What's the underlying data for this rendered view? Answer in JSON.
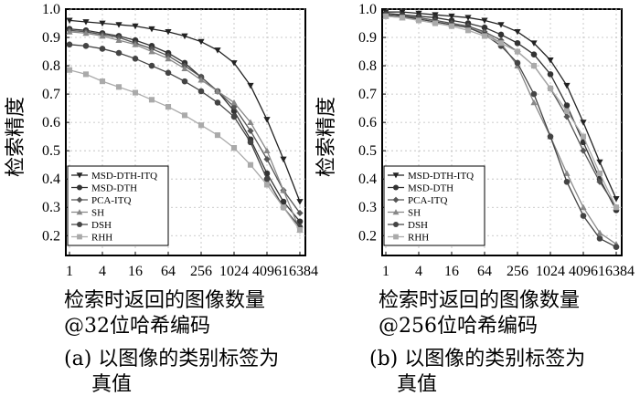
{
  "chart_data": [
    {
      "type": "line",
      "panel": "a",
      "title": "",
      "xlabel_line1": "检索时返回的图像数量",
      "xlabel_line2": "@32位哈希编码",
      "ylabel": "检索精度",
      "caption_line1": "(a) 以图像的类别标签为",
      "caption_line2": "真值",
      "x_scale": "log2",
      "x": [
        1,
        2,
        4,
        8,
        16,
        32,
        64,
        128,
        256,
        512,
        1024,
        2048,
        4096,
        8192,
        16384
      ],
      "x_tick_labels": [
        "1",
        "4",
        "16",
        "64",
        "256",
        "1024",
        "4096",
        "16384"
      ],
      "x_tick_values": [
        1,
        4,
        16,
        64,
        256,
        1024,
        4096,
        16384
      ],
      "y_tick_labels": [
        "0.2",
        "0.3",
        "0.4",
        "0.5",
        "0.6",
        "0.7",
        "0.8",
        "0.9",
        "1.0"
      ],
      "y_tick_values": [
        0.2,
        0.3,
        0.4,
        0.5,
        0.6,
        0.7,
        0.8,
        0.9,
        1.0
      ],
      "ylim": [
        0.13,
        1.0
      ],
      "grid": true,
      "legend_position": "bottom-left",
      "series": [
        {
          "name": "MSD-DTH-ITQ",
          "marker": "triangle-down",
          "color": "#222222",
          "values": [
            0.96,
            0.955,
            0.95,
            0.945,
            0.94,
            0.93,
            0.92,
            0.905,
            0.885,
            0.855,
            0.81,
            0.73,
            0.61,
            0.47,
            0.32
          ]
        },
        {
          "name": "MSD-DTH",
          "marker": "circle",
          "color": "#333333",
          "values": [
            0.93,
            0.925,
            0.915,
            0.905,
            0.89,
            0.87,
            0.845,
            0.81,
            0.76,
            0.71,
            0.64,
            0.54,
            0.42,
            0.32,
            0.25
          ]
        },
        {
          "name": "PCA-ITQ",
          "marker": "diamond",
          "color": "#555555",
          "values": [
            0.925,
            0.92,
            0.91,
            0.9,
            0.88,
            0.86,
            0.835,
            0.8,
            0.76,
            0.71,
            0.655,
            0.57,
            0.47,
            0.36,
            0.28
          ]
        },
        {
          "name": "SH",
          "marker": "triangle-up",
          "color": "#888888",
          "values": [
            0.92,
            0.915,
            0.905,
            0.89,
            0.875,
            0.85,
            0.825,
            0.79,
            0.75,
            0.71,
            0.67,
            0.6,
            0.5,
            0.36,
            0.22
          ]
        },
        {
          "name": "DSH",
          "marker": "circle",
          "color": "#444444",
          "values": [
            0.875,
            0.87,
            0.86,
            0.845,
            0.825,
            0.8,
            0.775,
            0.745,
            0.71,
            0.67,
            0.62,
            0.53,
            0.4,
            0.3,
            0.23
          ]
        },
        {
          "name": "RHH",
          "marker": "square",
          "color": "#aaaaaa",
          "values": [
            0.785,
            0.77,
            0.745,
            0.725,
            0.705,
            0.68,
            0.655,
            0.625,
            0.59,
            0.555,
            0.51,
            0.45,
            0.38,
            0.3,
            0.22
          ]
        }
      ]
    },
    {
      "type": "line",
      "panel": "b",
      "title": "",
      "xlabel_line1": "检索时返回的图像数量",
      "xlabel_line2": "@256位哈希编码",
      "ylabel": "检索精度",
      "caption_line1": "(b) 以图像的类别标签为",
      "caption_line2": "真值",
      "x_scale": "log2",
      "x": [
        1,
        2,
        4,
        8,
        16,
        32,
        64,
        128,
        256,
        512,
        1024,
        2048,
        4096,
        8192,
        16384
      ],
      "x_tick_labels": [
        "1",
        "4",
        "16",
        "64",
        "256",
        "1024",
        "4096",
        "16384"
      ],
      "x_tick_values": [
        1,
        4,
        16,
        64,
        256,
        1024,
        4096,
        16384
      ],
      "y_tick_labels": [
        "0.2",
        "0.3",
        "0.4",
        "0.5",
        "0.6",
        "0.7",
        "0.8",
        "0.9",
        "1.0"
      ],
      "y_tick_values": [
        0.2,
        0.3,
        0.4,
        0.5,
        0.6,
        0.7,
        0.8,
        0.9,
        1.0
      ],
      "ylim": [
        0.13,
        1.0
      ],
      "grid": true,
      "legend_position": "bottom-left",
      "series": [
        {
          "name": "MSD-DTH-ITQ",
          "marker": "triangle-down",
          "color": "#222222",
          "values": [
            0.99,
            0.99,
            0.985,
            0.98,
            0.975,
            0.97,
            0.96,
            0.945,
            0.92,
            0.88,
            0.82,
            0.73,
            0.6,
            0.46,
            0.33
          ]
        },
        {
          "name": "MSD-DTH",
          "marker": "circle",
          "color": "#333333",
          "values": [
            0.985,
            0.98,
            0.975,
            0.97,
            0.96,
            0.95,
            0.935,
            0.91,
            0.88,
            0.84,
            0.77,
            0.66,
            0.53,
            0.4,
            0.29
          ]
        },
        {
          "name": "PCA-ITQ",
          "marker": "diamond",
          "color": "#555555",
          "values": [
            0.98,
            0.975,
            0.97,
            0.96,
            0.95,
            0.94,
            0.92,
            0.89,
            0.85,
            0.8,
            0.72,
            0.62,
            0.5,
            0.39,
            0.3
          ]
        },
        {
          "name": "SH",
          "marker": "triangle-up",
          "color": "#888888",
          "values": [
            0.975,
            0.97,
            0.965,
            0.955,
            0.945,
            0.935,
            0.915,
            0.88,
            0.8,
            0.67,
            0.55,
            0.42,
            0.3,
            0.21,
            0.17
          ]
        },
        {
          "name": "DSH",
          "marker": "circle",
          "color": "#444444",
          "values": [
            0.98,
            0.975,
            0.965,
            0.955,
            0.945,
            0.935,
            0.91,
            0.87,
            0.81,
            0.7,
            0.55,
            0.39,
            0.27,
            0.19,
            0.16
          ]
        },
        {
          "name": "RHH",
          "marker": "square",
          "color": "#aaaaaa",
          "values": [
            0.975,
            0.97,
            0.96,
            0.95,
            0.94,
            0.925,
            0.905,
            0.88,
            0.85,
            0.8,
            0.72,
            0.64,
            0.55,
            0.42,
            0.3
          ]
        }
      ]
    }
  ]
}
